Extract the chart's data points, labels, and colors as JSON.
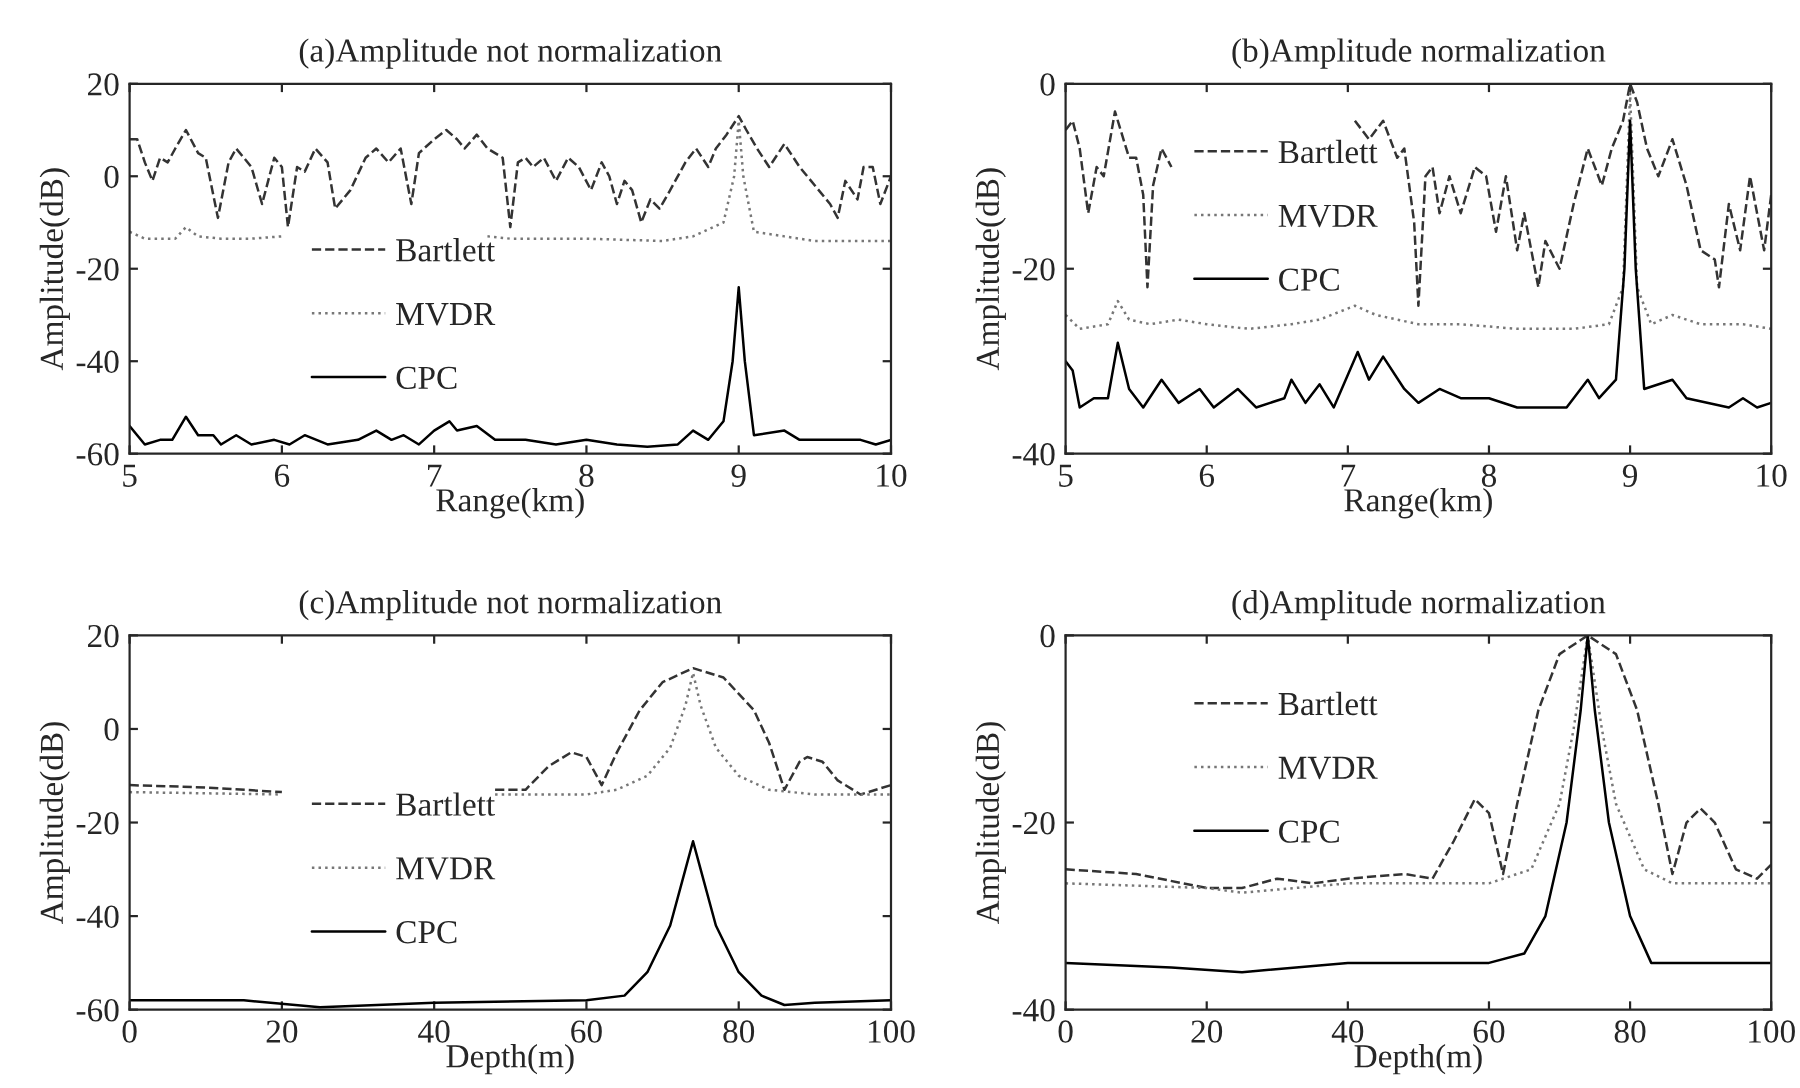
{
  "chart_data": [
    {
      "type": "line",
      "title": "(a)Amplitude not normalization",
      "xlabel": "Range(km)",
      "ylabel": "Amplitude(dB)",
      "xlim": [
        5,
        10
      ],
      "xticks": [
        5,
        6,
        7,
        8,
        9,
        10
      ],
      "ylim": [
        -60,
        20
      ],
      "yticks": [
        -60,
        -40,
        -20,
        0,
        20
      ],
      "grid": false,
      "legend": "left",
      "series": [
        {
          "name": "Bartlett",
          "color": "#333333",
          "line_style": "dashed",
          "x": [
            5.0,
            5.05,
            5.1,
            5.15,
            5.2,
            5.25,
            5.3,
            5.37,
            5.45,
            5.5,
            5.58,
            5.65,
            5.7,
            5.8,
            5.87,
            5.95,
            6.0,
            6.04,
            6.1,
            6.15,
            6.22,
            6.3,
            6.35,
            6.45,
            6.55,
            6.62,
            6.7,
            6.78,
            6.85,
            6.9,
            7.0,
            7.08,
            7.15,
            7.2,
            7.28,
            7.35,
            7.45,
            7.5,
            7.55,
            7.6,
            7.65,
            7.72,
            7.8,
            7.88,
            7.95,
            8.03,
            8.1,
            8.15,
            8.2,
            8.25,
            8.3,
            8.36,
            8.42,
            8.48,
            8.55,
            8.65,
            8.72,
            8.8,
            8.85,
            8.92,
            9.0,
            9.05,
            9.12,
            9.2,
            9.3,
            9.4,
            9.5,
            9.6,
            9.65,
            9.7,
            9.78,
            9.82,
            9.88,
            9.93,
            10.0
          ],
          "values": [
            8,
            8,
            3,
            -1,
            4,
            3,
            6,
            10,
            5,
            4,
            -9,
            3,
            6,
            2,
            -6,
            4,
            2,
            -11,
            2,
            1,
            6,
            3,
            -7,
            -3,
            4,
            6,
            3,
            6,
            -6,
            5,
            8,
            10,
            8,
            6,
            9,
            6,
            4,
            -11,
            3,
            4,
            2,
            4,
            -1,
            4,
            2,
            -3,
            3,
            0,
            -6,
            -1,
            -3,
            -10,
            -5,
            -7,
            -3,
            3,
            6,
            2,
            6,
            9,
            13,
            10,
            6,
            2,
            7,
            2,
            -2,
            -6,
            -9,
            -1,
            -5,
            2,
            2,
            -6,
            0
          ]
        },
        {
          "name": "MVDR",
          "color": "#777777",
          "line_style": "dotted",
          "x": [
            5.0,
            5.1,
            5.3,
            5.37,
            5.45,
            5.6,
            5.8,
            6.0,
            6.5,
            7.35,
            7.5,
            8.0,
            8.5,
            8.7,
            8.9,
            8.97,
            9.0,
            9.03,
            9.1,
            9.3,
            9.5,
            10.0
          ],
          "values": [
            -12,
            -13.5,
            -13.5,
            -11,
            -13,
            -13.5,
            -13.5,
            -13,
            null,
            -13,
            -13.5,
            -13.5,
            -14,
            -13,
            -10,
            0,
            12,
            0,
            -12,
            -13,
            -14,
            -14
          ]
        },
        {
          "name": "CPC",
          "color": "#000000",
          "line_style": "solid",
          "x": [
            5.0,
            5.1,
            5.2,
            5.28,
            5.37,
            5.45,
            5.55,
            5.6,
            5.7,
            5.8,
            5.95,
            6.05,
            6.15,
            6.3,
            6.5,
            6.62,
            6.72,
            6.8,
            6.9,
            7.0,
            7.1,
            7.15,
            7.28,
            7.4,
            7.6,
            7.8,
            8.0,
            8.2,
            8.4,
            8.6,
            8.7,
            8.8,
            8.9,
            8.96,
            9.0,
            9.04,
            9.1,
            9.3,
            9.4,
            9.6,
            9.8,
            9.9,
            10.0
          ],
          "values": [
            -54,
            -58,
            -57,
            -57,
            -52,
            -56,
            -56,
            -58,
            -56,
            -58,
            -57,
            -58,
            -56,
            -58,
            -57,
            -55,
            -57,
            -56,
            -58,
            -55,
            -53,
            -55,
            -54,
            -57,
            -57,
            -58,
            -57,
            -58,
            -58.5,
            -58,
            -55,
            -57,
            -53,
            -40,
            -24,
            -40,
            -56,
            -55,
            -57,
            -57,
            -57,
            -58,
            -57
          ]
        }
      ]
    },
    {
      "type": "line",
      "title": "(b)Amplitude normalization",
      "xlabel": "Range(km)",
      "ylabel": "Amplitude(dB)",
      "xlim": [
        5,
        10
      ],
      "xticks": [
        5,
        6,
        7,
        8,
        9,
        10
      ],
      "ylim": [
        -40,
        0
      ],
      "yticks": [
        -40,
        -20,
        0
      ],
      "grid": false,
      "legend": "top left",
      "series": [
        {
          "name": "Bartlett",
          "color": "#333333",
          "line_style": "dashed",
          "x": [
            5.0,
            5.05,
            5.1,
            5.16,
            5.22,
            5.27,
            5.35,
            5.45,
            5.5,
            5.55,
            5.58,
            5.62,
            5.68,
            5.75,
            6.4,
            7.05,
            7.15,
            7.25,
            7.35,
            7.4,
            7.47,
            7.5,
            7.55,
            7.6,
            7.65,
            7.72,
            7.8,
            7.9,
            7.98,
            8.05,
            8.12,
            8.2,
            8.25,
            8.3,
            8.35,
            8.4,
            8.5,
            8.6,
            8.7,
            8.8,
            8.87,
            8.95,
            9.0,
            9.05,
            9.12,
            9.2,
            9.3,
            9.4,
            9.5,
            9.6,
            9.63,
            9.7,
            9.78,
            9.85,
            9.95,
            10.0
          ],
          "values": [
            -5,
            -4,
            -7,
            -14,
            -9,
            -10,
            -3,
            -8,
            -8,
            -12,
            -22,
            -11,
            -7,
            -9,
            null,
            -4,
            -6,
            -4,
            -8,
            -7,
            -15,
            -24,
            -10,
            -9,
            -14,
            -10,
            -14,
            -9,
            -10,
            -16,
            -10,
            -18,
            -14,
            -18,
            -22,
            -17,
            -20,
            -13,
            -7,
            -11,
            -7,
            -4,
            0,
            -2,
            -7,
            -10,
            -6,
            -11,
            -18,
            -19,
            -22,
            -13,
            -18,
            -10,
            -18,
            -12
          ]
        },
        {
          "name": "MVDR",
          "color": "#777777",
          "line_style": "dotted",
          "x": [
            5.0,
            5.1,
            5.3,
            5.37,
            5.45,
            5.6,
            5.8,
            6.0,
            6.3,
            6.6,
            6.8,
            7.05,
            7.2,
            7.5,
            7.8,
            8.2,
            8.6,
            8.85,
            8.95,
            9.0,
            9.05,
            9.15,
            9.3,
            9.5,
            9.8,
            10.0
          ],
          "values": [
            -25,
            -26.5,
            -26,
            -23.5,
            -25.5,
            -26,
            -25.5,
            -26,
            -26.5,
            -26,
            -25.5,
            -24,
            -25,
            -26,
            -26,
            -26.5,
            -26.5,
            -26,
            -22,
            -1,
            -22,
            -26,
            -25,
            -26,
            -26,
            -26.5
          ]
        },
        {
          "name": "CPC",
          "color": "#000000",
          "line_style": "solid",
          "x": [
            5.0,
            5.05,
            5.1,
            5.2,
            5.3,
            5.37,
            5.45,
            5.55,
            5.68,
            5.8,
            5.95,
            6.05,
            6.22,
            6.35,
            6.55,
            6.6,
            6.7,
            6.8,
            6.9,
            7.07,
            7.15,
            7.25,
            7.4,
            7.5,
            7.65,
            7.8,
            8.0,
            8.2,
            8.4,
            8.55,
            8.7,
            8.78,
            8.9,
            8.96,
            9.0,
            9.04,
            9.1,
            9.3,
            9.4,
            9.7,
            9.8,
            9.9,
            10.0
          ],
          "values": [
            -30,
            -31,
            -35,
            -34,
            -34,
            -28,
            -33,
            -35,
            -32,
            -34.5,
            -33,
            -35,
            -33,
            -35,
            -34,
            -32,
            -34.5,
            -32.5,
            -35,
            -29,
            -32,
            -29.5,
            -33,
            -34.5,
            -33,
            -34,
            -34,
            -35,
            -35,
            -35,
            -32,
            -34,
            -32,
            -20,
            -4,
            -20,
            -33,
            -32,
            -34,
            -35,
            -34,
            -35,
            -34.5
          ]
        }
      ]
    },
    {
      "type": "line",
      "title": "(c)Amplitude not normalization",
      "xlabel": "Depth(m)",
      "ylabel": "Amplitude(dB)",
      "xlim": [
        0,
        100
      ],
      "xticks": [
        0,
        20,
        40,
        60,
        80,
        100
      ],
      "ylim": [
        -60,
        20
      ],
      "yticks": [
        -60,
        -40,
        -20,
        0,
        20
      ],
      "grid": false,
      "legend": "left",
      "series": [
        {
          "name": "Bartlett",
          "color": "#333333",
          "line_style": "dashed",
          "x": [
            0,
            10,
            20,
            35,
            48,
            52,
            55,
            58,
            60,
            62,
            64,
            67,
            70,
            74,
            78,
            82,
            84,
            86,
            88,
            89,
            91,
            93,
            96,
            100
          ],
          "values": [
            -12,
            -12.5,
            -13.5,
            null,
            -13,
            -13,
            -8,
            -5,
            -6,
            -12,
            -5,
            4,
            10,
            13,
            11,
            4,
            -3,
            -13,
            -7,
            -6,
            -7,
            -11,
            -14,
            -12
          ]
        },
        {
          "name": "MVDR",
          "color": "#777777",
          "line_style": "dotted",
          "x": [
            0,
            20,
            35,
            48,
            60,
            64,
            68,
            71,
            73,
            74,
            75,
            77,
            80,
            84,
            90,
            100
          ],
          "values": [
            -13.5,
            -14,
            null,
            -14,
            -14,
            -13,
            -10,
            -4,
            5,
            12,
            5,
            -4,
            -10,
            -13,
            -14,
            -14
          ]
        },
        {
          "name": "CPC",
          "color": "#000000",
          "line_style": "solid",
          "x": [
            0,
            15,
            25,
            40,
            60,
            65,
            68,
            71,
            73,
            74,
            75,
            77,
            80,
            83,
            86,
            90,
            100
          ],
          "values": [
            -58,
            -58,
            -59.5,
            -58.5,
            -58,
            -57,
            -52,
            -42,
            -30,
            -24,
            -30,
            -42,
            -52,
            -57,
            -59,
            -58.5,
            -58
          ]
        }
      ]
    },
    {
      "type": "line",
      "title": "(d)Amplitude normalization",
      "xlabel": "Depth(m)",
      "ylabel": "Amplitude(dB)",
      "xlim": [
        0,
        100
      ],
      "xticks": [
        0,
        20,
        40,
        60,
        80,
        100
      ],
      "ylim": [
        -40,
        0
      ],
      "yticks": [
        -40,
        -20,
        0
      ],
      "grid": false,
      "legend": "top left",
      "series": [
        {
          "name": "Bartlett",
          "color": "#333333",
          "line_style": "dashed",
          "x": [
            0,
            10,
            20,
            25,
            30,
            35,
            40,
            48,
            52,
            55,
            58,
            60,
            62,
            64,
            67,
            70,
            74,
            78,
            81,
            84,
            86,
            88,
            90,
            92,
            95,
            98,
            100
          ],
          "values": [
            -25,
            -25.5,
            -27,
            -27,
            -26,
            -26.5,
            -26,
            -25.5,
            -26,
            -22,
            -17.5,
            -19,
            -25.5,
            -18,
            -8,
            -2,
            0,
            -2,
            -8,
            -18,
            -25.5,
            -20,
            -18.5,
            -20,
            -25,
            -26,
            -24.5
          ]
        },
        {
          "name": "MVDR",
          "color": "#777777",
          "line_style": "dotted",
          "x": [
            0,
            20,
            25,
            40,
            60,
            66,
            70,
            72,
            74,
            76,
            78,
            82,
            86,
            100
          ],
          "values": [
            -26.5,
            -27,
            -27.5,
            -26.5,
            -26.5,
            -25,
            -18,
            -10,
            0,
            -10,
            -18,
            -25,
            -26.5,
            -26.5
          ]
        },
        {
          "name": "CPC",
          "color": "#000000",
          "line_style": "solid",
          "x": [
            0,
            15,
            25,
            40,
            60,
            65,
            68,
            71,
            73,
            74,
            75,
            77,
            80,
            83,
            90,
            100
          ],
          "values": [
            -35,
            -35.5,
            -36,
            -35,
            -35,
            -34,
            -30,
            -20,
            -8,
            0,
            -8,
            -20,
            -30,
            -35,
            -35,
            -35
          ]
        }
      ]
    }
  ]
}
